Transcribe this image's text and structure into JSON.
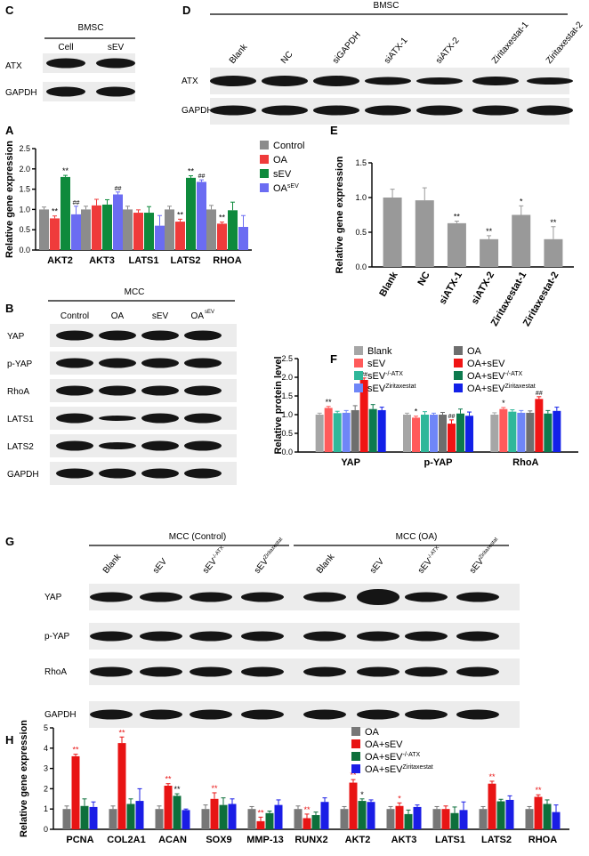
{
  "panels": {
    "c": {
      "letter": "C",
      "title": "BMSC",
      "lanes": [
        "Cell",
        "sEV"
      ],
      "rows": [
        "ATX",
        "GAPDH"
      ]
    },
    "d": {
      "letter": "D",
      "title": "BMSC",
      "lanes": [
        "Blank",
        "NC",
        "siGAPDH",
        "siATX-1",
        "siATX-2",
        "Ziritaxestat-1",
        "Ziritaxestat-2"
      ],
      "rows": [
        "ATX",
        "GAPDH"
      ]
    },
    "b": {
      "letter": "B",
      "title": "MCC",
      "lanes": [
        "Control",
        "OA",
        "sEV",
        "OA",
        "sEV"
      ],
      "rows": [
        "YAP",
        "p-YAP",
        "RhoA",
        "LATS1",
        "LATS2",
        "GAPDH"
      ]
    },
    "g": {
      "letter": "G",
      "group1": "MCC (Control)",
      "group2": "MCC (OA)",
      "lanes": [
        "Blank",
        "sEV",
        "sEV",
        "-/-ATX",
        "sEV",
        "Ziritaxestat",
        "Blank",
        "sEV",
        "sEV",
        "-/-ATX",
        "sEV",
        "Ziritaxestat"
      ],
      "rows": [
        "YAP",
        "p-YAP",
        "RhoA",
        "GAPDH"
      ]
    }
  },
  "chart_data": [
    {
      "id": "A",
      "type": "bar",
      "letter": "A",
      "ylabel": "Relative gene expression",
      "ylim": [
        0,
        2.5
      ],
      "yticks": [
        "0.0",
        "0.5",
        "1.0",
        "1.5",
        "2.0",
        "2.5"
      ],
      "categories": [
        "AKT2",
        "AKT3",
        "LATS1",
        "LATS2",
        "RHOA"
      ],
      "series": [
        {
          "name": "Control",
          "color": "#8c8c8c",
          "values": [
            1.0,
            1.0,
            1.0,
            1.0,
            1.0
          ],
          "err": [
            0.06,
            0.08,
            0.08,
            0.08,
            0.1
          ],
          "marks": [
            "",
            "",
            "",
            "",
            ""
          ]
        },
        {
          "name": "OA",
          "color": "#ef3b3b",
          "values": [
            0.78,
            1.1,
            0.92,
            0.7,
            0.65
          ],
          "err": [
            0.06,
            0.15,
            0.07,
            0.06,
            0.04
          ],
          "marks": [
            "**",
            "",
            "",
            "**",
            "**"
          ]
        },
        {
          "name": "sEV",
          "color": "#0e8a3c",
          "values": [
            1.8,
            1.12,
            0.92,
            1.78,
            0.98
          ],
          "err": [
            0.04,
            0.12,
            0.15,
            0.05,
            0.2
          ],
          "marks": [
            "**",
            "",
            "",
            "**",
            ""
          ]
        },
        {
          "name": "OA",
          "sup": "sEV",
          "color": "#6b6cf2",
          "values": [
            0.88,
            1.37,
            0.6,
            1.68,
            0.57
          ],
          "err": [
            0.2,
            0.06,
            0.25,
            0.05,
            0.28
          ],
          "marks": [
            "##",
            "##",
            "",
            "##",
            ""
          ]
        }
      ]
    },
    {
      "id": "E",
      "type": "bar",
      "letter": "E",
      "ylabel": "Relative gene expression",
      "ylim": [
        0,
        1.5
      ],
      "yticks": [
        "0.0",
        "0.5",
        "1.0",
        "1.5"
      ],
      "categories": [
        "Blank",
        "NC",
        "siATX-1",
        "siATX-2",
        "Ziritaxestat-1",
        "Ziritaxestat-2"
      ],
      "values": [
        1.0,
        0.96,
        0.63,
        0.4,
        0.75,
        0.4
      ],
      "err": [
        0.12,
        0.18,
        0.03,
        0.05,
        0.13,
        0.18
      ],
      "marks": [
        "",
        "",
        "**",
        "**",
        "*",
        "**"
      ],
      "color": "#999999"
    },
    {
      "id": "F",
      "type": "bar",
      "letter": "F",
      "ylabel": "Relative protein level",
      "ylim": [
        0,
        2.5
      ],
      "yticks": [
        "0.0",
        "0.5",
        "1.0",
        "1.5",
        "2.0",
        "2.5"
      ],
      "categories": [
        "YAP",
        "p-YAP",
        "RhoA"
      ],
      "series": [
        {
          "name": "Blank",
          "color": "#a6a6a6",
          "values": [
            1.0,
            1.0,
            1.0
          ],
          "err": [
            0.04,
            0.04,
            0.05
          ],
          "marks": [
            "",
            "",
            ""
          ]
        },
        {
          "name": "sEV",
          "color": "#ff5a5a",
          "values": [
            1.18,
            0.92,
            1.15
          ],
          "err": [
            0.04,
            0.04,
            0.04
          ],
          "marks": [
            "**",
            "*",
            "*"
          ]
        },
        {
          "name": "sEV",
          "sup": "-/-ATX",
          "color": "#2fb79a",
          "values": [
            1.04,
            1.0,
            1.08
          ],
          "err": [
            0.05,
            0.08,
            0.05
          ],
          "marks": [
            "",
            "",
            ""
          ]
        },
        {
          "name": "sEV",
          "sup": "Ziritaxestat",
          "color": "#6f86f7",
          "values": [
            1.05,
            1.0,
            1.05
          ],
          "err": [
            0.06,
            0.04,
            0.06
          ],
          "marks": [
            "",
            "",
            ""
          ]
        },
        {
          "name": "OA",
          "color": "#6e6e6e",
          "values": [
            1.12,
            1.0,
            1.05
          ],
          "err": [
            0.12,
            0.06,
            0.05
          ],
          "marks": [
            "",
            "",
            ""
          ]
        },
        {
          "name": "OA+sEV",
          "color": "#f01414",
          "values": [
            1.93,
            0.76,
            1.42
          ],
          "err": [
            0.05,
            0.1,
            0.06
          ],
          "marks": [
            "##",
            "##",
            "##"
          ]
        },
        {
          "name": "OA+sEV",
          "sup": "-/-ATX",
          "color": "#0d7a4e",
          "values": [
            1.15,
            1.03,
            1.03
          ],
          "err": [
            0.12,
            0.12,
            0.08
          ],
          "marks": [
            "",
            "",
            ""
          ]
        },
        {
          "name": "OA+sEV",
          "sup": "Ziritaxestat",
          "color": "#1220e8",
          "values": [
            1.12,
            0.97,
            1.1
          ],
          "err": [
            0.08,
            0.1,
            0.1
          ],
          "marks": [
            "",
            "",
            ""
          ]
        }
      ]
    },
    {
      "id": "H",
      "type": "bar",
      "letter": "H",
      "ylabel": "Relative gene expression",
      "ylim": [
        0,
        5
      ],
      "yticks": [
        "0",
        "1",
        "2",
        "3",
        "4",
        "5"
      ],
      "categories": [
        "PCNA",
        "COL2A1",
        "ACAN",
        "SOX9",
        "MMP-13",
        "RUNX2",
        "AKT2",
        "AKT3",
        "LATS1",
        "LATS2",
        "RHOA"
      ],
      "series": [
        {
          "name": "OA",
          "color": "#777777",
          "values": [
            1.0,
            1.0,
            1.0,
            1.0,
            1.0,
            1.0,
            1.0,
            1.0,
            1.0,
            1.0,
            1.0
          ],
          "err": [
            0.15,
            0.15,
            0.15,
            0.2,
            0.12,
            0.15,
            0.12,
            0.12,
            0.12,
            0.12,
            0.12
          ],
          "marks": [
            "",
            "",
            "",
            "",
            "",
            "",
            "",
            "",
            "",
            "",
            ""
          ]
        },
        {
          "name": "OA+sEV",
          "color": "#e81414",
          "values": [
            3.6,
            4.25,
            2.15,
            1.5,
            0.4,
            0.55,
            2.3,
            1.15,
            1.0,
            2.25,
            1.6
          ],
          "err": [
            0.1,
            0.3,
            0.1,
            0.3,
            0.2,
            0.2,
            0.15,
            0.15,
            0.15,
            0.12,
            0.1
          ],
          "marks": [
            "**",
            "**",
            "**",
            "**",
            "**",
            "**",
            "**",
            "*",
            "",
            "**",
            "**"
          ]
        },
        {
          "name": "OA+sEV",
          "sup": "-/-ATX",
          "color": "#0d6f3b",
          "values": [
            1.15,
            1.25,
            1.65,
            1.2,
            0.8,
            0.7,
            1.4,
            0.75,
            0.8,
            1.38,
            1.25
          ],
          "err": [
            0.35,
            0.25,
            0.1,
            0.35,
            0.1,
            0.15,
            0.1,
            0.2,
            0.3,
            0.1,
            0.2
          ],
          "marks": [
            "",
            "",
            "**",
            "",
            "",
            "",
            "*",
            "",
            "",
            "",
            ""
          ]
        },
        {
          "name": "OA+sEV",
          "sup": "Ziritaxestat",
          "color": "#1a1de6",
          "values": [
            1.1,
            1.4,
            0.95,
            1.25,
            1.2,
            1.35,
            1.35,
            1.1,
            0.95,
            1.45,
            0.85
          ],
          "err": [
            0.25,
            0.6,
            0.05,
            0.25,
            0.25,
            0.2,
            0.1,
            0.1,
            0.4,
            0.2,
            0.35
          ],
          "marks": [
            "",
            "",
            "",
            "",
            "",
            "",
            "",
            "",
            "",
            "",
            ""
          ]
        }
      ]
    }
  ]
}
